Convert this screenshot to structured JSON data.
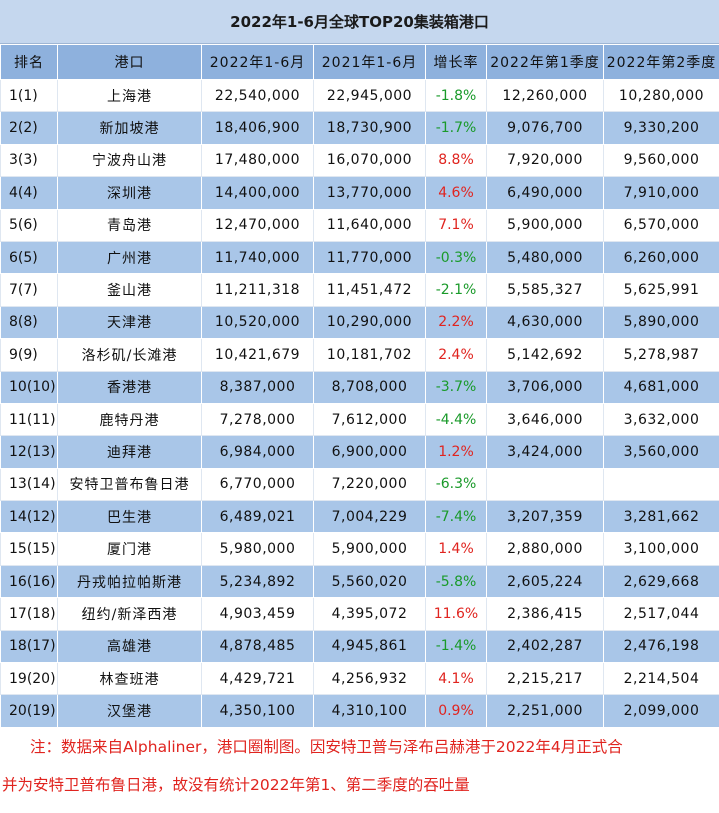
{
  "title": "2022年1-6月全球TOP20集装箱港口",
  "headers": [
    "排名",
    "港口",
    "2022年1-6月",
    "2021年1-6月",
    "增长率",
    "2022年第1季度",
    "2022年第2季度"
  ],
  "rows": [
    {
      "rank": "1(1)",
      "port": "上海港",
      "y2022": "22,540,000",
      "y2021": "22,945,000",
      "growth": "-1.8%",
      "dir": "neg",
      "q1": "12,260,000",
      "q2": "10,280,000"
    },
    {
      "rank": "2(2)",
      "port": "新加坡港",
      "y2022": "18,406,900",
      "y2021": "18,730,900",
      "growth": "-1.7%",
      "dir": "neg",
      "q1": "9,076,700",
      "q2": "9,330,200"
    },
    {
      "rank": "3(3)",
      "port": "宁波舟山港",
      "y2022": "17,480,000",
      "y2021": "16,070,000",
      "growth": "8.8%",
      "dir": "pos",
      "q1": "7,920,000",
      "q2": "9,560,000"
    },
    {
      "rank": "4(4)",
      "port": "深圳港",
      "y2022": "14,400,000",
      "y2021": "13,770,000",
      "growth": "4.6%",
      "dir": "pos",
      "q1": "6,490,000",
      "q2": "7,910,000"
    },
    {
      "rank": "5(6)",
      "port": "青岛港",
      "y2022": "12,470,000",
      "y2021": "11,640,000",
      "growth": "7.1%",
      "dir": "pos",
      "q1": "5,900,000",
      "q2": "6,570,000"
    },
    {
      "rank": "6(5)",
      "port": "广州港",
      "y2022": "11,740,000",
      "y2021": "11,770,000",
      "growth": "-0.3%",
      "dir": "neg",
      "q1": "5,480,000",
      "q2": "6,260,000"
    },
    {
      "rank": "7(7)",
      "port": "釜山港",
      "y2022": "11,211,318",
      "y2021": "11,451,472",
      "growth": "-2.1%",
      "dir": "neg",
      "q1": "5,585,327",
      "q2": "5,625,991"
    },
    {
      "rank": "8(8)",
      "port": "天津港",
      "y2022": "10,520,000",
      "y2021": "10,290,000",
      "growth": "2.2%",
      "dir": "pos",
      "q1": "4,630,000",
      "q2": "5,890,000"
    },
    {
      "rank": "9(9)",
      "port": "洛杉矶/长滩港",
      "y2022": "10,421,679",
      "y2021": "10,181,702",
      "growth": "2.4%",
      "dir": "pos",
      "q1": "5,142,692",
      "q2": "5,278,987"
    },
    {
      "rank": "10(10)",
      "port": "香港港",
      "y2022": "8,387,000",
      "y2021": "8,708,000",
      "growth": "-3.7%",
      "dir": "neg",
      "q1": "3,706,000",
      "q2": "4,681,000"
    },
    {
      "rank": "11(11)",
      "port": "鹿特丹港",
      "y2022": "7,278,000",
      "y2021": "7,612,000",
      "growth": "-4.4%",
      "dir": "neg",
      "q1": "3,646,000",
      "q2": "3,632,000"
    },
    {
      "rank": "12(13)",
      "port": "迪拜港",
      "y2022": "6,984,000",
      "y2021": "6,900,000",
      "growth": "1.2%",
      "dir": "pos",
      "q1": "3,424,000",
      "q2": "3,560,000"
    },
    {
      "rank": "13(14)",
      "port": "安特卫普布鲁日港",
      "y2022": "6,770,000",
      "y2021": "7,220,000",
      "growth": "-6.3%",
      "dir": "neg",
      "q1": "",
      "q2": ""
    },
    {
      "rank": "14(12)",
      "port": "巴生港",
      "y2022": "6,489,021",
      "y2021": "7,004,229",
      "growth": "-7.4%",
      "dir": "neg",
      "q1": "3,207,359",
      "q2": "3,281,662"
    },
    {
      "rank": "15(15)",
      "port": "厦门港",
      "y2022": "5,980,000",
      "y2021": "5,900,000",
      "growth": "1.4%",
      "dir": "pos",
      "q1": "2,880,000",
      "q2": "3,100,000"
    },
    {
      "rank": "16(16)",
      "port": "丹戎帕拉帕斯港",
      "y2022": "5,234,892",
      "y2021": "5,560,020",
      "growth": "-5.8%",
      "dir": "neg",
      "q1": "2,605,224",
      "q2": "2,629,668"
    },
    {
      "rank": "17(18)",
      "port": "纽约/新泽西港",
      "y2022": "4,903,459",
      "y2021": "4,395,072",
      "growth": "11.6%",
      "dir": "pos",
      "q1": "2,386,415",
      "q2": "2,517,044"
    },
    {
      "rank": "18(17)",
      "port": "高雄港",
      "y2022": "4,878,485",
      "y2021": "4,945,861",
      "growth": "-1.4%",
      "dir": "neg",
      "q1": "2,402,287",
      "q2": "2,476,198"
    },
    {
      "rank": "19(20)",
      "port": "林查班港",
      "y2022": "4,429,721",
      "y2021": "4,256,932",
      "growth": "4.1%",
      "dir": "pos",
      "q1": "2,215,217",
      "q2": "2,214,504"
    },
    {
      "rank": "20(19)",
      "port": "汉堡港",
      "y2022": "4,350,100",
      "y2021": "4,310,100",
      "growth": "0.9%",
      "dir": "pos",
      "q1": "2,251,000",
      "q2": "2,099,000"
    }
  ],
  "note": {
    "line1": "注：数据来自Alphaliner，港口圈制图。因安特卫普与泽布吕赫港于2022年4月正式合",
    "line2": "并为安特卫普布鲁日港，故没有统计2022年第1、第二季度的吞吐量"
  },
  "colors": {
    "header_bg": "#8eb1dd",
    "stripe_bg": "#a9c6e8",
    "negative": "#1a9a2a",
    "positive": "#e0241f"
  }
}
